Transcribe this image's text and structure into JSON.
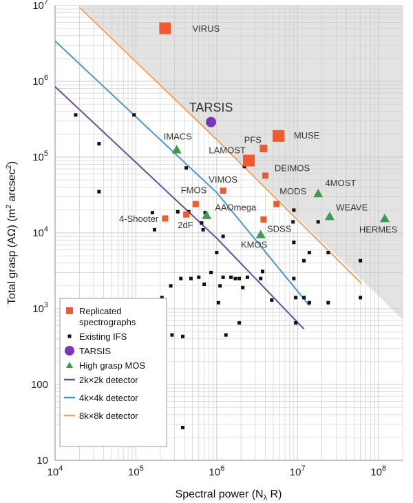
{
  "chart_data": {
    "type": "scatter",
    "x_scale": "log",
    "y_scale": "log",
    "xlim": [
      10000,
      200000000
    ],
    "ylim": [
      10,
      10000000
    ],
    "grid": true,
    "legend_position": "bottom-left",
    "xlabel": "Spectral power (Nλ R)",
    "ylabel": "Total grasp (AΩ) (m² arcsec²)",
    "x_tick_labels": [
      {
        "value": 10000,
        "base": "10",
        "exp": "4"
      },
      {
        "value": 100000,
        "base": "10",
        "exp": "5"
      },
      {
        "value": 1000000,
        "base": "10",
        "exp": "6"
      },
      {
        "value": 10000000,
        "base": "10",
        "exp": "7"
      },
      {
        "value": 100000000,
        "base": "10",
        "exp": "8"
      }
    ],
    "y_tick_labels": [
      {
        "value": 10,
        "base": "10",
        "exp": ""
      },
      {
        "value": 100,
        "base": "100",
        "exp": ""
      },
      {
        "value": 1000,
        "base": "10",
        "exp": "3"
      },
      {
        "value": 10000,
        "base": "10",
        "exp": "4"
      },
      {
        "value": 100000,
        "base": "10",
        "exp": "5"
      },
      {
        "value": 1000000,
        "base": "10",
        "exp": "6"
      },
      {
        "value": 10000000,
        "base": "10",
        "exp": "7"
      }
    ],
    "colors": {
      "replicated": "#f05a33",
      "ifs": "#111111",
      "tarsis": "#7b35b8",
      "mos": "#3d9a50",
      "det2k": "#6a4c9c",
      "det4k": "#4f94c9",
      "det8k": "#f0a060",
      "shade": "#e3e3e3",
      "grid": "#c8c8c8"
    },
    "detector_lines": [
      {
        "name": "2k×2k detector",
        "color": "#6a4c9c",
        "points": [
          [
            10000,
            850000
          ],
          [
            1000000,
            8500
          ],
          [
            12000000,
            540
          ]
        ]
      },
      {
        "name": "4k×4k detector",
        "color": "#4f94c9",
        "points": [
          [
            10000,
            3400000
          ],
          [
            1000000,
            34000
          ],
          [
            14000000,
            1100
          ]
        ]
      },
      {
        "name": "8k×8k detector",
        "color": "#f0a060",
        "points": [
          [
            20000,
            9500000
          ],
          [
            1000000,
            170000
          ],
          [
            62000000,
            2150
          ]
        ]
      }
    ],
    "shaded_region": [
      [
        20000,
        10000000
      ],
      [
        200000000,
        10000000
      ],
      [
        200000000,
        720
      ]
    ],
    "replicated": [
      {
        "name": "VIRUS",
        "x": 230000,
        "y": 5000000,
        "size": "large"
      },
      {
        "name": "MUSE",
        "x": 5800000,
        "y": 190000,
        "size": "large"
      },
      {
        "name": "LAMOST",
        "x": 2500000,
        "y": 90000,
        "size": "large"
      },
      {
        "name": "PFS",
        "x": 3800000,
        "y": 130000,
        "size": "medium"
      },
      {
        "name": "DEIMOS",
        "x": 4000000,
        "y": 57000,
        "size": "small"
      },
      {
        "name": "VIMOS",
        "x": 1200000,
        "y": 36000,
        "size": "small"
      },
      {
        "name": "FMOS",
        "x": 550000,
        "y": 24000,
        "size": "small"
      },
      {
        "name": "MODS",
        "x": 5500000,
        "y": 24000,
        "size": "small"
      },
      {
        "name": "4-Shooter",
        "x": 230000,
        "y": 15500,
        "size": "small"
      },
      {
        "name": "2dF",
        "x": 420000,
        "y": 17500,
        "size": "small"
      },
      {
        "name": "SDSS",
        "x": 3800000,
        "y": 15000,
        "size": "small"
      }
    ],
    "tarsis": [
      {
        "name": "TARSIS",
        "x": 850000,
        "y": 290000
      }
    ],
    "mos": [
      {
        "name": "IMACS",
        "x": 320000,
        "y": 125000
      },
      {
        "name": "AAOmega",
        "x": 750000,
        "y": 17000
      },
      {
        "name": "KMOS",
        "x": 3500000,
        "y": 9500
      },
      {
        "name": "4MOST",
        "x": 18000000,
        "y": 33000
      },
      {
        "name": "WEAVE",
        "x": 25000000,
        "y": 16500
      },
      {
        "name": "HERMES",
        "x": 120000000,
        "y": 15500
      }
    ],
    "ifs": [
      [
        18000,
        360000
      ],
      [
        35000,
        150000
      ],
      [
        35000,
        35000
      ],
      [
        95000,
        360000
      ],
      [
        160000,
        18500
      ],
      [
        170000,
        11000
      ],
      [
        210000,
        1400
      ],
      [
        270000,
        2000
      ],
      [
        280000,
        450
      ],
      [
        330000,
        19000
      ],
      [
        360000,
        2500
      ],
      [
        380000,
        430
      ],
      [
        380000,
        27
      ],
      [
        420000,
        72000
      ],
      [
        450000,
        19000
      ],
      [
        480000,
        2500
      ],
      [
        600000,
        2600
      ],
      [
        650000,
        13500
      ],
      [
        680000,
        11000
      ],
      [
        700000,
        2100
      ],
      [
        720000,
        18500
      ],
      [
        850000,
        3000
      ],
      [
        1000000,
        5500
      ],
      [
        1050000,
        1200
      ],
      [
        1100000,
        2000
      ],
      [
        1200000,
        2600
      ],
      [
        1200000,
        9000
      ],
      [
        1300000,
        450
      ],
      [
        1500000,
        2600
      ],
      [
        1700000,
        2500
      ],
      [
        1900000,
        650
      ],
      [
        1900000,
        2500
      ],
      [
        2100000,
        1900
      ],
      [
        2200000,
        75000
      ],
      [
        2400000,
        2600
      ],
      [
        3500000,
        2500
      ],
      [
        3700000,
        3100
      ],
      [
        4800000,
        1300
      ],
      [
        8800000,
        14000
      ],
      [
        9000000,
        20000
      ],
      [
        9000000,
        7500
      ],
      [
        9000000,
        2500
      ],
      [
        9500000,
        650
      ],
      [
        9500000,
        1400
      ],
      [
        12000000,
        4300
      ],
      [
        12000000,
        1400
      ],
      [
        14000000,
        5500
      ],
      [
        14000000,
        1200
      ],
      [
        18000000,
        14000
      ],
      [
        24000000,
        5500
      ],
      [
        24000000,
        1200
      ],
      [
        60000000,
        4300
      ],
      [
        60000000,
        1400
      ]
    ],
    "point_labels": [
      {
        "text": "VIRUS",
        "color": "#333333",
        "x": 500000,
        "y": 5000000,
        "anchor": "start"
      },
      {
        "text": "TARSIS",
        "color": "#7b35b8",
        "x": 850000,
        "y": 440000,
        "anchor": "middle",
        "big": true
      },
      {
        "text": "IMACS",
        "x": 330000,
        "y": 190000,
        "anchor": "middle"
      },
      {
        "text": "PFS",
        "x": 2800000,
        "y": 170000,
        "anchor": "middle"
      },
      {
        "text": "MUSE",
        "x": 9000000,
        "y": 195000,
        "anchor": "start"
      },
      {
        "text": "LAMOST",
        "x": 1350000,
        "y": 125000,
        "anchor": "middle"
      },
      {
        "text": "DEIMOS",
        "x": 5200000,
        "y": 72000,
        "anchor": "start"
      },
      {
        "text": "VIMOS",
        "x": 1200000,
        "y": 51000,
        "anchor": "middle"
      },
      {
        "text": "FMOS",
        "x": 520000,
        "y": 37000,
        "anchor": "middle"
      },
      {
        "text": "4MOST",
        "x": 22000000,
        "y": 46000,
        "anchor": "start"
      },
      {
        "text": "MODS",
        "x": 6000000,
        "y": 36000,
        "anchor": "start"
      },
      {
        "text": "AAOmega",
        "x": 950000,
        "y": 22000,
        "anchor": "start"
      },
      {
        "text": "WEAVE",
        "x": 30000000,
        "y": 22000,
        "anchor": "start"
      },
      {
        "text": "4-Shooter",
        "x": 190000,
        "y": 15500,
        "anchor": "end"
      },
      {
        "text": "2dF",
        "x": 330000,
        "y": 12800,
        "anchor": "start"
      },
      {
        "text": "SDSS",
        "x": 4200000,
        "y": 11400,
        "anchor": "start"
      },
      {
        "text": "HERMES",
        "x": 100000000,
        "y": 11200,
        "anchor": "middle"
      },
      {
        "text": "KMOS",
        "x": 2900000,
        "y": 7100,
        "anchor": "middle"
      }
    ],
    "legend": [
      {
        "key": "replicated",
        "label": "Replicated",
        "label2": "spectrographs",
        "marker": "square",
        "color": "#f05a33"
      },
      {
        "key": "ifs",
        "label": "Existing IFS",
        "marker": "small-square",
        "color": "#111111"
      },
      {
        "key": "tarsis",
        "label": "TARSIS",
        "marker": "circle",
        "color": "#7b35b8",
        "text_color": "#7b35b8"
      },
      {
        "key": "mos",
        "label": "High grasp MOS",
        "marker": "triangle",
        "color": "#3d9a50"
      },
      {
        "key": "det2k",
        "label": "2k×2k detector",
        "marker": "line",
        "color": "#6a4c9c"
      },
      {
        "key": "det4k",
        "label": "4k×4k detector",
        "marker": "line",
        "color": "#4f94c9"
      },
      {
        "key": "det8k",
        "label": "8k×8k detector",
        "marker": "line",
        "color": "#f0a060"
      }
    ]
  }
}
